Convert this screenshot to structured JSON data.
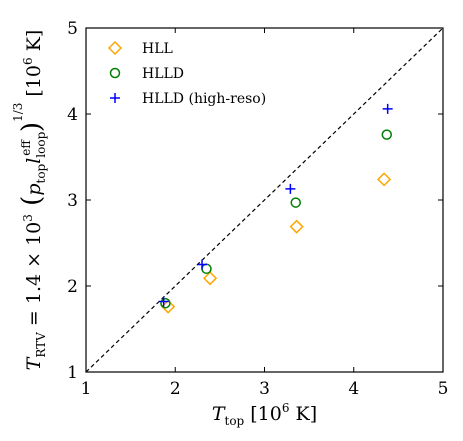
{
  "chart_data": {
    "type": "scatter",
    "xlim": [
      1,
      5
    ],
    "ylim": [
      1,
      5
    ],
    "xticks": [
      "1",
      "2",
      "3",
      "4",
      "5"
    ],
    "yticks": [
      "1",
      "2",
      "3",
      "4",
      "5"
    ],
    "xlabel": "T_top [10^6 K]",
    "ylabel": "T_RTV = 1.4 × 10^3 (p_top l_loop^eff)^(1/3) [10^6 K]",
    "legend_position": "top-left",
    "grid": false,
    "reference_line": {
      "style": "dashed",
      "from": [
        1,
        1
      ],
      "to": [
        5,
        5
      ],
      "color": "#000000"
    },
    "series": [
      {
        "name": "HLL",
        "marker": "diamond",
        "color": "#FFA500",
        "points": [
          [
            1.92,
            1.76
          ],
          [
            2.39,
            2.09
          ],
          [
            3.36,
            2.69
          ],
          [
            4.34,
            3.24
          ]
        ]
      },
      {
        "name": "HLLD",
        "marker": "circle",
        "color": "#008000",
        "points": [
          [
            1.89,
            1.8
          ],
          [
            2.35,
            2.2
          ],
          [
            3.35,
            2.97
          ],
          [
            4.37,
            3.76
          ]
        ]
      },
      {
        "name": "HLLD (high-reso)",
        "marker": "plus",
        "color": "#0000FF",
        "points": [
          [
            1.87,
            1.82
          ],
          [
            2.3,
            2.25
          ],
          [
            3.29,
            3.13
          ],
          [
            4.38,
            4.06
          ]
        ]
      }
    ]
  }
}
